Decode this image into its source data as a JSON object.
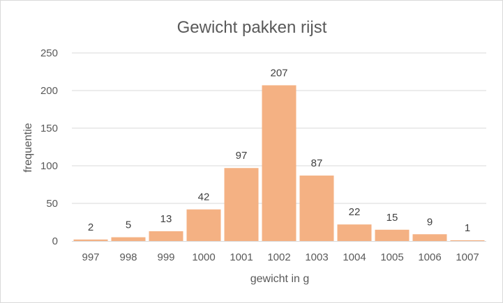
{
  "chart_data": {
    "type": "bar",
    "title": "Gewicht pakken rijst",
    "xlabel": "gewicht in g",
    "ylabel": "frequentie",
    "categories": [
      "997",
      "998",
      "999",
      "1000",
      "1001",
      "1002",
      "1003",
      "1004",
      "1005",
      "1006",
      "1007"
    ],
    "values": [
      2,
      5,
      13,
      42,
      97,
      207,
      87,
      22,
      15,
      9,
      1
    ],
    "ylim": [
      0,
      250
    ],
    "yticks": [
      0,
      50,
      100,
      150,
      200,
      250
    ],
    "grid": true,
    "legend": "none",
    "bar_color": "#f4b183",
    "gridline_color": "#d9d9d9",
    "text_color": "#595959"
  }
}
